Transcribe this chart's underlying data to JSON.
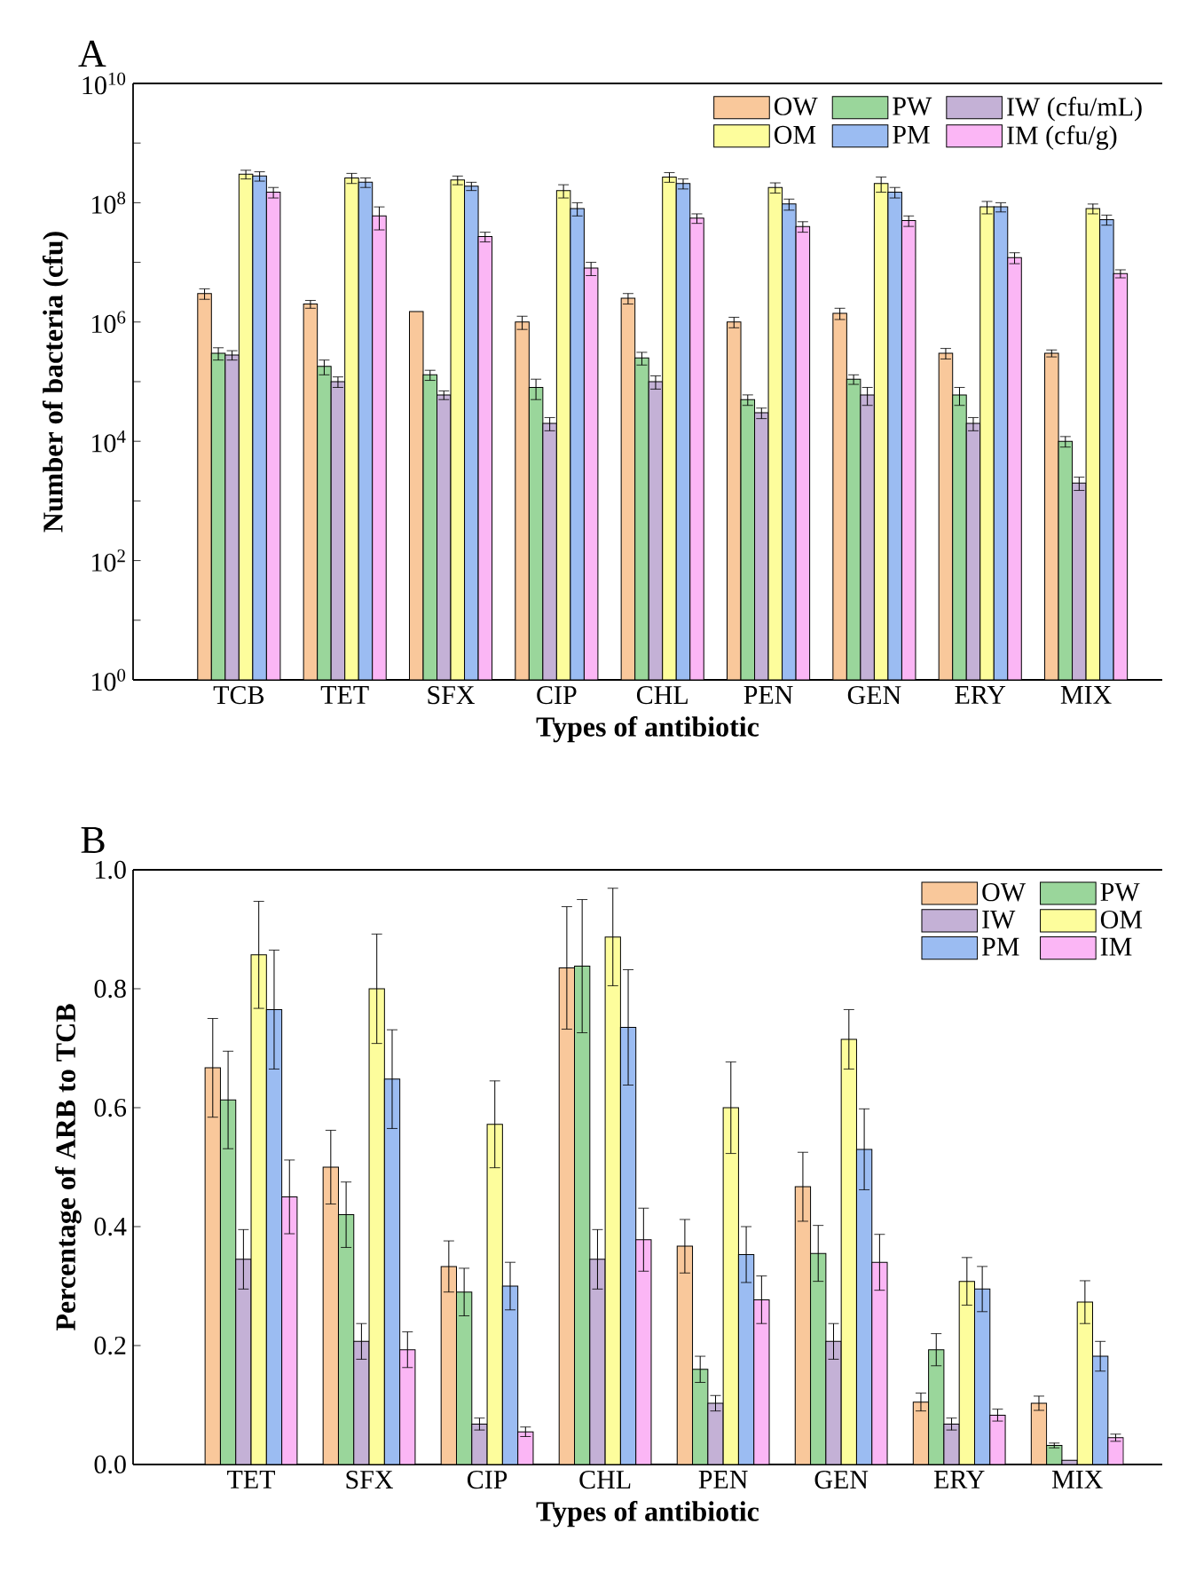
{
  "chart_data": [
    {
      "type": "bar",
      "title": "A",
      "xlabel": "Types of antibiotic",
      "ylabel": "Number of bacteria (cfu)",
      "categories": [
        "TCB",
        "TET",
        "SFX",
        "CIP",
        "CHL",
        "PEN",
        "GEN",
        "ERY",
        "MIX"
      ],
      "log": "y",
      "legend": "top right",
      "ylim": [
        1,
        10000000000
      ],
      "yticks": [
        {
          "value": 1,
          "label": "10$^{0}$"
        },
        {
          "value": 10,
          "label": null
        },
        {
          "value": 100,
          "label": "10$^{2}$"
        },
        {
          "value": 1000,
          "label": null
        },
        {
          "value": 10000,
          "label": "10$^{4}$"
        },
        {
          "value": 100000,
          "label": null
        },
        {
          "value": 1000000,
          "label": "10$^{6}$"
        },
        {
          "value": 10000000,
          "label": null
        },
        {
          "value": 100000000,
          "label": "10$^{8}$"
        },
        {
          "value": 1000000000,
          "label": null
        },
        {
          "value": 10000000000,
          "label": "10$^{10}$"
        }
      ],
      "series": [
        {
          "name": "OW",
          "color": "#f9c89b",
          "values": [
            3000000,
            2000000,
            1500000,
            1000000,
            2500000,
            1000000,
            1400000,
            300000,
            300000
          ],
          "errors": [
            600000,
            300000,
            null,
            250000,
            500000,
            200000,
            300000,
            60000,
            40000
          ]
        },
        {
          "name": "PW",
          "color": "#9ad69b",
          "values": [
            300000,
            180000,
            130000,
            80000,
            250000,
            50000,
            110000,
            60000,
            10000
          ],
          "errors": [
            70000,
            50000,
            25000,
            30000,
            60000,
            10000,
            20000,
            20000,
            2000
          ]
        },
        {
          "name": "IW (cfu/mL)",
          "color": "#c4b1d6",
          "values": [
            280000,
            100000,
            60000,
            20000,
            100000,
            30000,
            60000,
            20000,
            2000
          ],
          "errors": [
            50000,
            20000,
            10000,
            5000,
            25000,
            6000,
            20000,
            5000,
            500
          ]
        },
        {
          "name": "OM",
          "color": "#fdfd9c",
          "values": [
            300000000,
            260000000,
            240000000,
            160000000,
            270000000,
            180000000,
            210000000,
            85000000,
            80000000
          ],
          "errors": [
            50000000,
            50000000,
            40000000,
            40000000,
            50000000,
            35000000,
            60000000,
            20000000,
            15000000
          ]
        },
        {
          "name": "PM",
          "color": "#9bbcf2",
          "values": [
            280000000,
            220000000,
            190000000,
            80000000,
            210000000,
            95000000,
            150000000,
            85000000,
            52000000
          ],
          "errors": [
            50000000,
            40000000,
            30000000,
            20000000,
            40000000,
            20000000,
            30000000,
            15000000,
            10000000
          ]
        },
        {
          "name": "IM  (cfu/g)",
          "color": "#fbb6f5",
          "values": [
            150000000,
            60000000,
            27000000,
            8000000,
            55000000,
            40000000,
            50000000,
            12000000,
            6500000
          ],
          "errors": [
            30000000,
            25000000,
            5000000,
            2000000,
            10000000,
            8000000,
            10000000,
            2500000,
            1000000
          ]
        }
      ]
    },
    {
      "type": "bar",
      "title": "B",
      "xlabel": "Types of antibiotic",
      "ylabel": "Percentage of ARB to TCB",
      "categories": [
        "TET",
        "SFX",
        "CIP",
        "CHL",
        "PEN",
        "GEN",
        "ERY",
        "MIX"
      ],
      "legend": "top right",
      "ylim": [
        0,
        1
      ],
      "yticks": [
        {
          "value": 0,
          "label": "0.0"
        },
        {
          "value": 0.2,
          "label": "0.2"
        },
        {
          "value": 0.4,
          "label": "0.4"
        },
        {
          "value": 0.6,
          "label": "0.6"
        },
        {
          "value": 0.8,
          "label": "0.8"
        },
        {
          "value": 1,
          "label": "1.0"
        }
      ],
      "series": [
        {
          "name": "OW",
          "color": "#f9c89b",
          "values": [
            0.667,
            0.5,
            0.333,
            0.835,
            0.367,
            0.467,
            0.105,
            0.103
          ],
          "errors": [
            0.083,
            0.062,
            0.043,
            0.103,
            0.045,
            0.058,
            0.015,
            0.012
          ]
        },
        {
          "name": "PW",
          "color": "#9ad69b",
          "values": [
            0.613,
            0.42,
            0.29,
            0.838,
            0.16,
            0.355,
            0.193,
            0.032
          ],
          "errors": [
            0.082,
            0.055,
            0.04,
            0.112,
            0.022,
            0.047,
            0.027,
            0.004
          ]
        },
        {
          "name": "IW",
          "color": "#c4b1d6",
          "values": [
            0.345,
            0.207,
            0.068,
            0.345,
            0.103,
            0.207,
            0.068,
            0.007
          ],
          "errors": [
            0.05,
            0.03,
            0.01,
            0.05,
            0.013,
            0.03,
            0.01,
            null
          ]
        },
        {
          "name": "OM",
          "color": "#fdfd9c",
          "values": [
            0.857,
            0.8,
            0.572,
            0.887,
            0.6,
            0.715,
            0.308,
            0.273
          ],
          "errors": [
            0.09,
            0.092,
            0.073,
            0.082,
            0.077,
            0.05,
            0.04,
            0.036
          ]
        },
        {
          "name": "PM",
          "color": "#9bbcf2",
          "values": [
            0.765,
            0.648,
            0.3,
            0.735,
            0.353,
            0.53,
            0.295,
            0.182
          ],
          "errors": [
            0.1,
            0.083,
            0.04,
            0.097,
            0.047,
            0.068,
            0.038,
            0.025
          ]
        },
        {
          "name": "IM",
          "color": "#fbb6f5",
          "values": [
            0.45,
            0.193,
            0.055,
            0.378,
            0.277,
            0.34,
            0.083,
            0.045
          ],
          "errors": [
            0.062,
            0.03,
            0.008,
            0.053,
            0.04,
            0.047,
            0.01,
            0.006
          ]
        }
      ]
    }
  ]
}
